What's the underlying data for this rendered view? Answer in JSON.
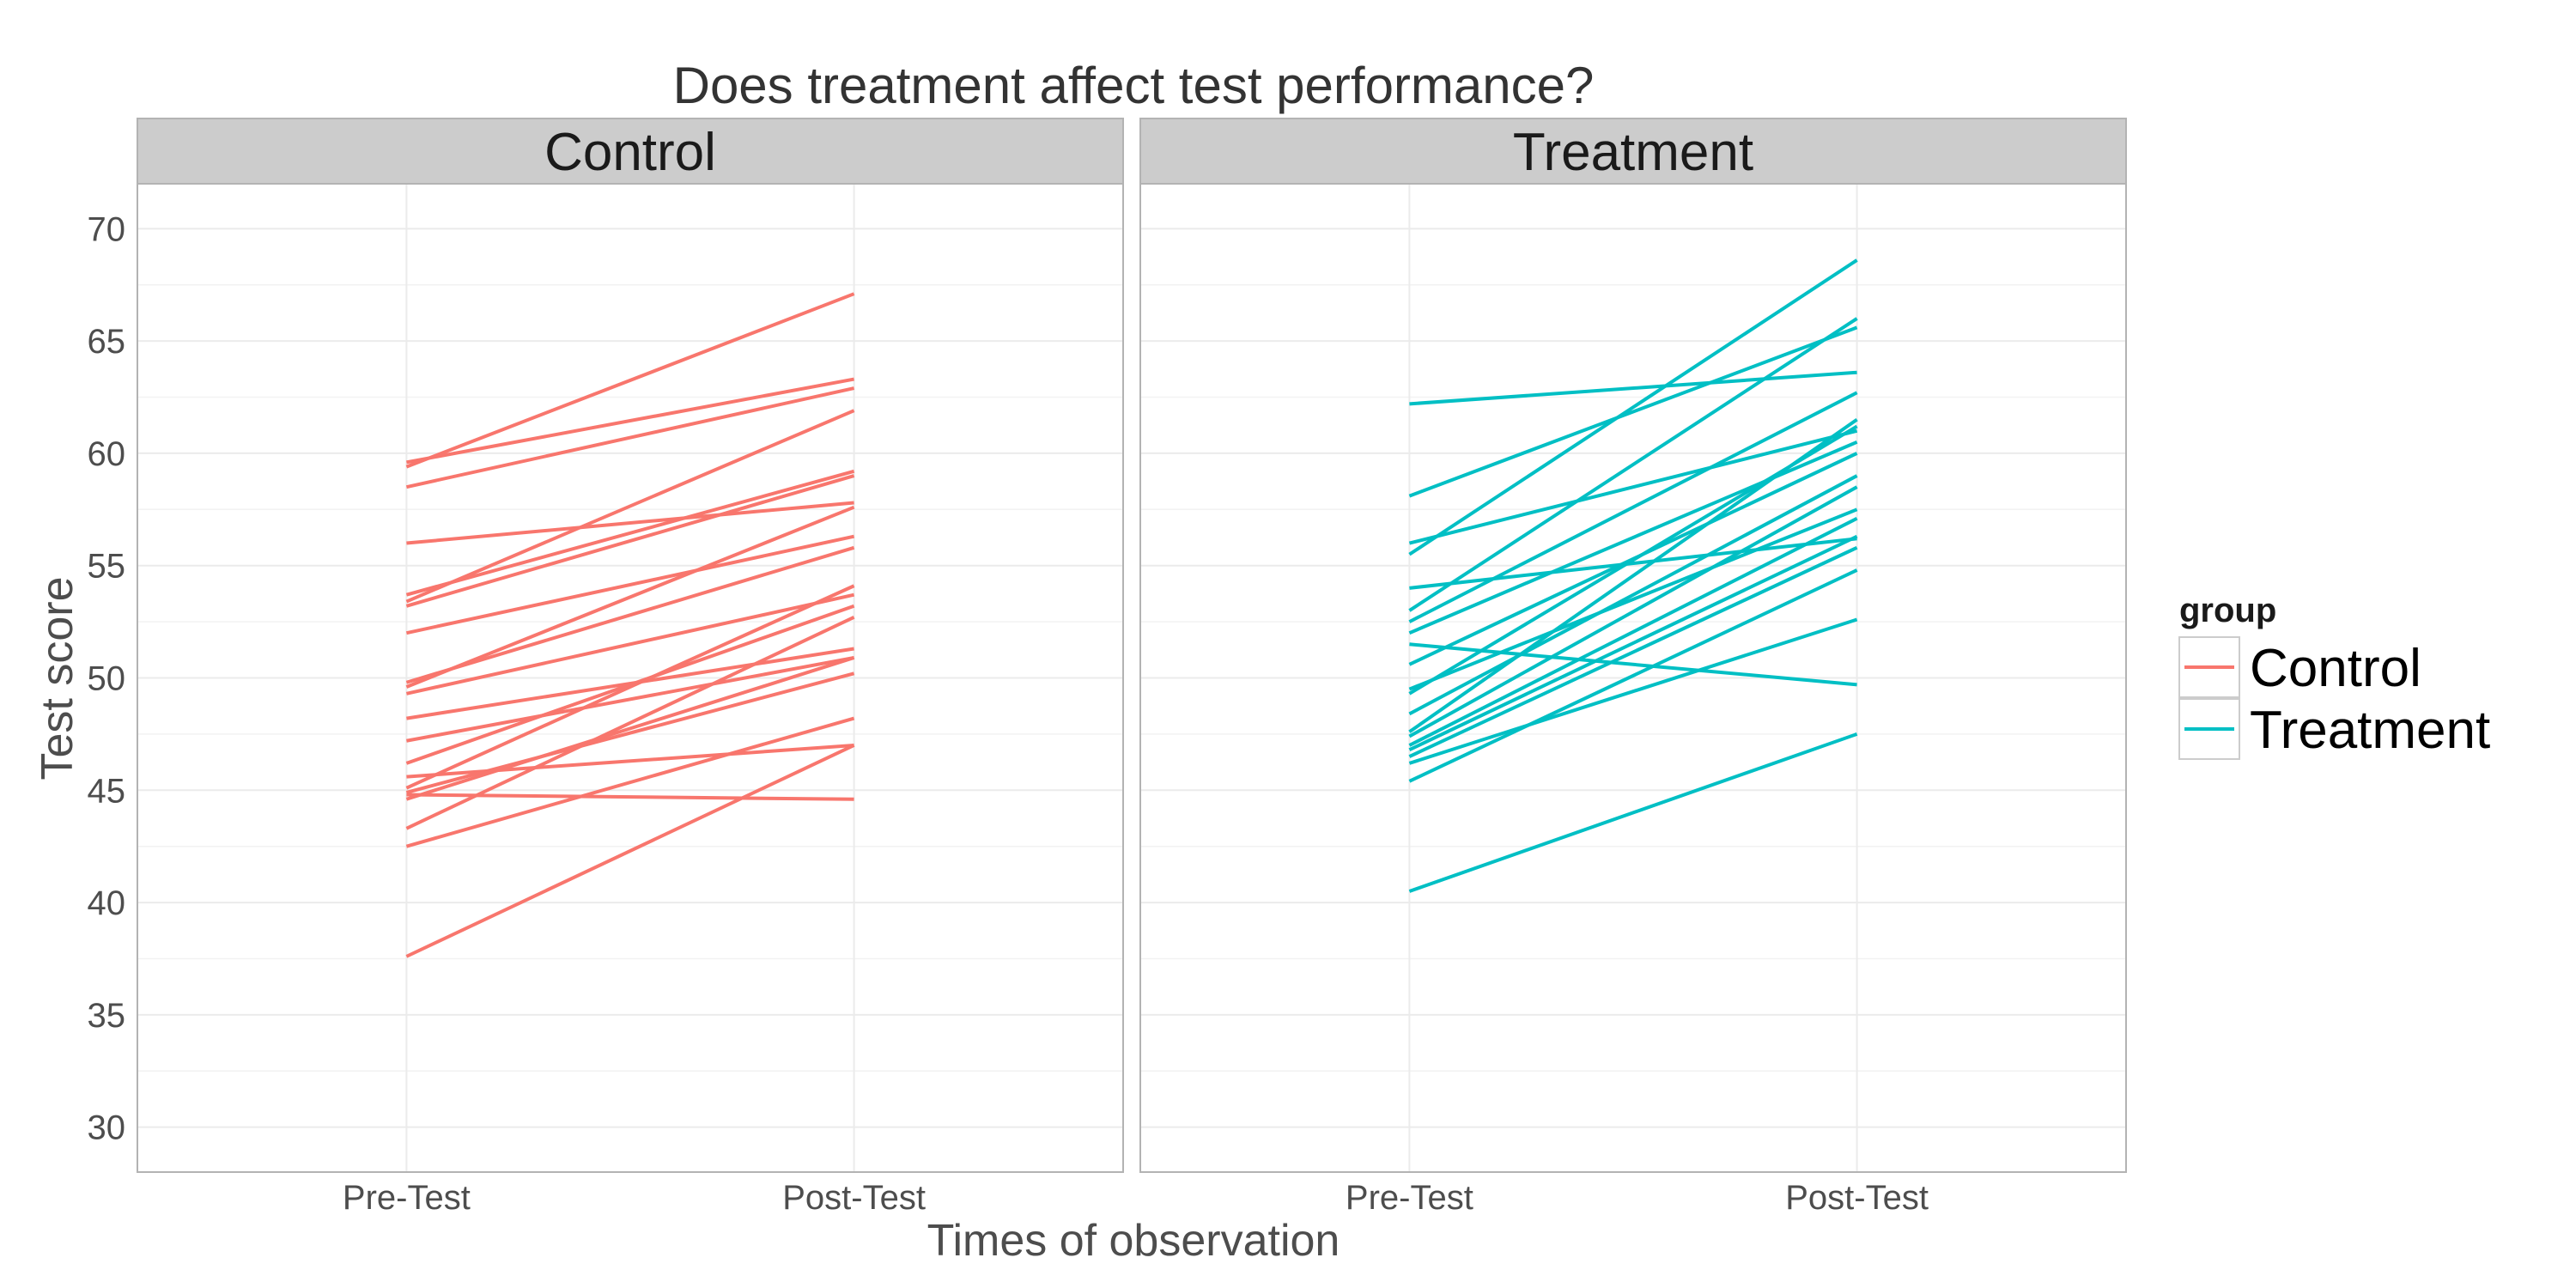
{
  "chart_data": {
    "type": "line",
    "title": "Does treatment affect test performance?",
    "xlabel": "Times of observation",
    "ylabel": "Test score",
    "x_categories": [
      "Pre-Test",
      "Post-Test"
    ],
    "ylim": [
      28,
      72
    ],
    "y_ticks": [
      30,
      35,
      40,
      45,
      50,
      55,
      60,
      65,
      70
    ],
    "grid": true,
    "legend": {
      "title": "group",
      "position": "right",
      "entries": [
        {
          "label": "Control",
          "color": "#F8766D"
        },
        {
          "label": "Treatment",
          "color": "#00BFC4"
        }
      ]
    },
    "panels": [
      {
        "label": "Control",
        "group": "Control",
        "color": "#F8766D",
        "subjects": [
          [
            59.6,
            63.3
          ],
          [
            59.4,
            67.1
          ],
          [
            58.5,
            62.9
          ],
          [
            56.0,
            57.8
          ],
          [
            53.7,
            59.2
          ],
          [
            53.4,
            61.9
          ],
          [
            53.2,
            59.0
          ],
          [
            52.0,
            56.3
          ],
          [
            49.8,
            55.8
          ],
          [
            49.6,
            57.6
          ],
          [
            49.3,
            53.7
          ],
          [
            48.2,
            51.3
          ],
          [
            47.2,
            50.9
          ],
          [
            46.2,
            53.2
          ],
          [
            45.6,
            47.0
          ],
          [
            45.1,
            54.1
          ],
          [
            44.9,
            50.2
          ],
          [
            44.8,
            44.6
          ],
          [
            44.6,
            50.9
          ],
          [
            43.3,
            52.7
          ],
          [
            42.5,
            48.2
          ],
          [
            37.6,
            47.0
          ]
        ]
      },
      {
        "label": "Treatment",
        "group": "Treatment",
        "color": "#00BFC4",
        "subjects": [
          [
            62.2,
            63.6
          ],
          [
            58.1,
            65.6
          ],
          [
            56.0,
            61.0
          ],
          [
            55.5,
            68.6
          ],
          [
            54.0,
            56.2
          ],
          [
            53.0,
            66.0
          ],
          [
            52.5,
            62.7
          ],
          [
            52.0,
            60.5
          ],
          [
            51.5,
            49.7
          ],
          [
            50.6,
            60.0
          ],
          [
            49.5,
            57.5
          ],
          [
            49.3,
            61.2
          ],
          [
            48.4,
            59.0
          ],
          [
            47.6,
            61.5
          ],
          [
            47.4,
            58.5
          ],
          [
            47.0,
            57.1
          ],
          [
            46.8,
            56.3
          ],
          [
            46.5,
            55.8
          ],
          [
            46.2,
            52.6
          ],
          [
            45.4,
            54.8
          ],
          [
            40.5,
            47.5
          ]
        ]
      }
    ]
  }
}
